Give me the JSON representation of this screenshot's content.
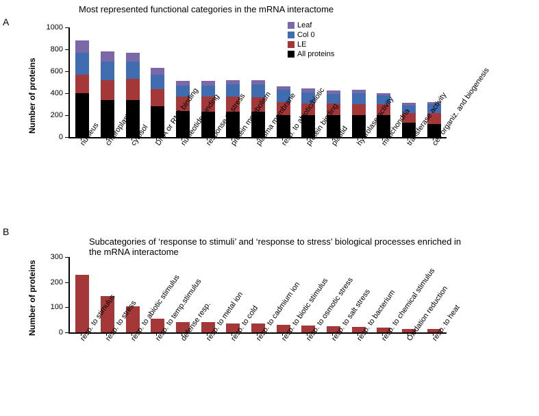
{
  "panelA": {
    "label": "A",
    "title": "Most represented functional categories in the mRNA interactome",
    "ylabel": "Number of proteins",
    "ylim": [
      0,
      1000
    ],
    "ytick_step": 200,
    "categories": [
      "nucleus",
      "chloroplast",
      "cytosol",
      "DNA or RNA binding",
      "nucleotide binding",
      "response to stress",
      "protein metabolism",
      "plasma membrane",
      "resp. to abiotic/biotic",
      "protein binding",
      "plastid",
      "hydrolase activity",
      "mitochondria",
      "transferase activity",
      "cell organiz. and biogenesis"
    ],
    "series": [
      {
        "name": "All proteins",
        "color": "#000000",
        "values": [
          400,
          340,
          340,
          280,
          240,
          230,
          230,
          230,
          200,
          200,
          200,
          200,
          200,
          130,
          120
        ]
      },
      {
        "name": "LE",
        "color": "#a43838",
        "values": [
          170,
          180,
          190,
          160,
          130,
          140,
          140,
          130,
          120,
          105,
          105,
          100,
          100,
          90,
          100
        ]
      },
      {
        "name": "Col 0",
        "color": "#3f6db0",
        "values": [
          200,
          170,
          160,
          130,
          100,
          100,
          110,
          120,
          110,
          100,
          90,
          100,
          80,
          70,
          80
        ]
      },
      {
        "name": "Leaf",
        "color": "#7b68a8",
        "values": [
          110,
          90,
          80,
          60,
          40,
          40,
          40,
          40,
          30,
          40,
          30,
          30,
          20,
          20,
          20
        ]
      }
    ],
    "background_color": "#ffffff",
    "bar_width": 0.55,
    "title_fontsize": 13,
    "label_fontsize": 12
  },
  "panelB": {
    "label": "B",
    "title": "Subcategories of ‘response to stimuli’ and ‘response to stress’ biological processes enriched in the mRNA interactome",
    "ylabel": "Number of proteins",
    "ylim": [
      0,
      300
    ],
    "ytick_step": 100,
    "categories": [
      "resp. to stimulus",
      "resp. to stress",
      "resp. to abiotic stimulus",
      "resp. to temp.stimulus",
      "defense resp.",
      "resp. to metal ion",
      "resp. to cold",
      "resp. to cadmium ion",
      "resp. to biotic stimulus",
      "resp. to osmotic stress",
      "resp. to salt stress",
      "resp. to bacterium",
      "resp. to chemical stimulus",
      "Oxidation reduction",
      "resp. to heat"
    ],
    "values": [
      230,
      145,
      105,
      55,
      40,
      40,
      35,
      35,
      30,
      28,
      25,
      22,
      18,
      15,
      13
    ],
    "bar_color": "#a43838",
    "background_color": "#ffffff",
    "bar_width": 0.55,
    "title_fontsize": 13,
    "label_fontsize": 12
  }
}
